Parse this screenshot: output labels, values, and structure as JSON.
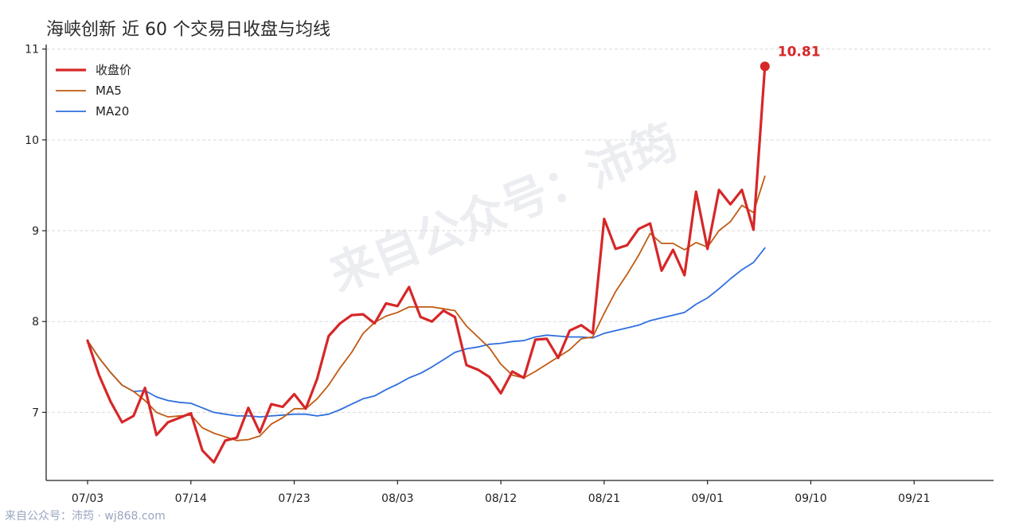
{
  "chart_data": {
    "type": "line",
    "title": "海峡创新 近 60 个交易日收盘与均线",
    "xlabel": "",
    "ylabel": "",
    "ylim": [
      6.25,
      11.05
    ],
    "yticks": [
      7,
      8,
      9,
      10,
      11
    ],
    "grid": true,
    "legend_position": "top-left",
    "xtick_labels": [
      "07/03",
      "07/14",
      "07/23",
      "08/03",
      "08/12",
      "08/21",
      "09/01",
      "09/10",
      "09/21"
    ],
    "xtick_index": [
      0,
      9,
      18,
      27,
      36,
      45,
      54,
      63,
      72
    ],
    "series": [
      {
        "name": "收盘价",
        "color": "#d62728",
        "values": [
          7.79,
          7.41,
          7.12,
          6.89,
          6.96,
          7.27,
          6.75,
          6.89,
          6.94,
          6.99,
          6.58,
          6.45,
          6.69,
          6.72,
          7.05,
          6.78,
          7.09,
          7.06,
          7.2,
          7.04,
          7.37,
          7.84,
          7.98,
          8.07,
          8.08,
          7.98,
          8.2,
          8.17,
          8.38,
          8.05,
          8.0,
          8.12,
          8.05,
          7.52,
          7.47,
          7.39,
          7.21,
          7.45,
          7.38,
          7.8,
          7.81,
          7.6,
          7.9,
          7.96,
          7.87,
          9.13,
          8.8,
          8.84,
          9.02,
          9.08,
          8.56,
          8.79,
          8.51,
          9.43,
          8.8,
          9.45,
          9.29,
          9.45,
          9.01,
          10.81
        ]
      },
      {
        "name": "MA5",
        "color": "#c15a11",
        "values": [
          7.79,
          7.6,
          7.44,
          7.3,
          7.23,
          7.13,
          7.0,
          6.95,
          6.96,
          6.97,
          6.83,
          6.77,
          6.73,
          6.69,
          6.7,
          6.74,
          6.87,
          6.94,
          7.04,
          7.04,
          7.15,
          7.3,
          7.49,
          7.66,
          7.87,
          7.99,
          8.06,
          8.1,
          8.16,
          8.16,
          8.16,
          8.14,
          8.12,
          7.95,
          7.83,
          7.71,
          7.53,
          7.41,
          7.38,
          7.45,
          7.53,
          7.61,
          7.69,
          7.81,
          7.83,
          8.09,
          8.33,
          8.52,
          8.73,
          8.97,
          8.86,
          8.86,
          8.79,
          8.87,
          8.82,
          9.0,
          9.1,
          9.28,
          9.2,
          9.6
        ]
      },
      {
        "name": "MA20",
        "color": "#2f6fdf",
        "values": [
          7.79,
          7.6,
          7.44,
          7.3,
          7.23,
          7.24,
          7.17,
          7.13,
          7.11,
          7.1,
          7.05,
          7.0,
          6.98,
          6.96,
          6.96,
          6.95,
          6.96,
          6.97,
          6.98,
          6.98,
          6.96,
          6.98,
          7.03,
          7.09,
          7.15,
          7.18,
          7.25,
          7.31,
          7.38,
          7.43,
          7.5,
          7.58,
          7.66,
          7.7,
          7.72,
          7.75,
          7.76,
          7.78,
          7.79,
          7.83,
          7.85,
          7.84,
          7.83,
          7.83,
          7.82,
          7.87,
          7.9,
          7.93,
          7.96,
          8.01,
          8.04,
          8.07,
          8.1,
          8.19,
          8.26,
          8.36,
          8.47,
          8.57,
          8.65,
          8.81
        ]
      }
    ],
    "last_label": "10.81"
  },
  "watermark_text": "来自公众号：沛筠",
  "footer_text": "来自公众号：沛筠 · wj868.com"
}
